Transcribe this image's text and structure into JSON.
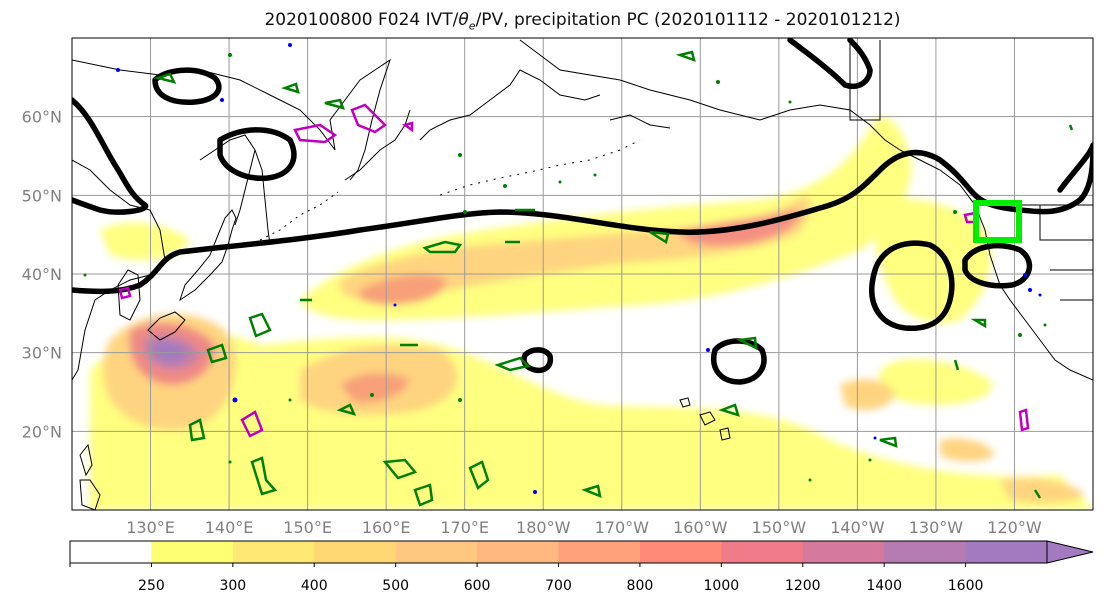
{
  "title": {
    "prefix": "2020100800 F024 IVT/",
    "theta": "θ",
    "theta_sub": "e",
    "suffix": "/PV, precipitation PC (2020101112 - 2020101212)"
  },
  "map": {
    "lat_labels": [
      "60°N",
      "50°N",
      "40°N",
      "30°N",
      "20°N"
    ],
    "lon_labels": [
      "130°E",
      "140°E",
      "150°E",
      "160°E",
      "170°E",
      "180°W",
      "170°W",
      "160°W",
      "150°W",
      "140°W",
      "130°W",
      "120°W"
    ],
    "lon_range": [
      120,
      250
    ],
    "lat_range": [
      10,
      70
    ],
    "grid": true,
    "highlight_box_color": "#00ee00",
    "contour_colors": {
      "pv": "#000000",
      "theta_e": "#008000",
      "precip_magenta": "#c000c0",
      "precip_blue": "#0000ff"
    }
  },
  "colorbar": {
    "labels": [
      "250",
      "300",
      "400",
      "500",
      "600",
      "700",
      "800",
      "1000",
      "1200",
      "1400",
      "1600"
    ],
    "colors": [
      "#ffffff",
      "#ffff73",
      "#ffe873",
      "#ffd873",
      "#ffc880",
      "#ffb880",
      "#ffa27c",
      "#ff8a78",
      "#ef7a88",
      "#d5799d",
      "#b57cb2",
      "#a37ac0"
    ],
    "extend": "max"
  }
}
